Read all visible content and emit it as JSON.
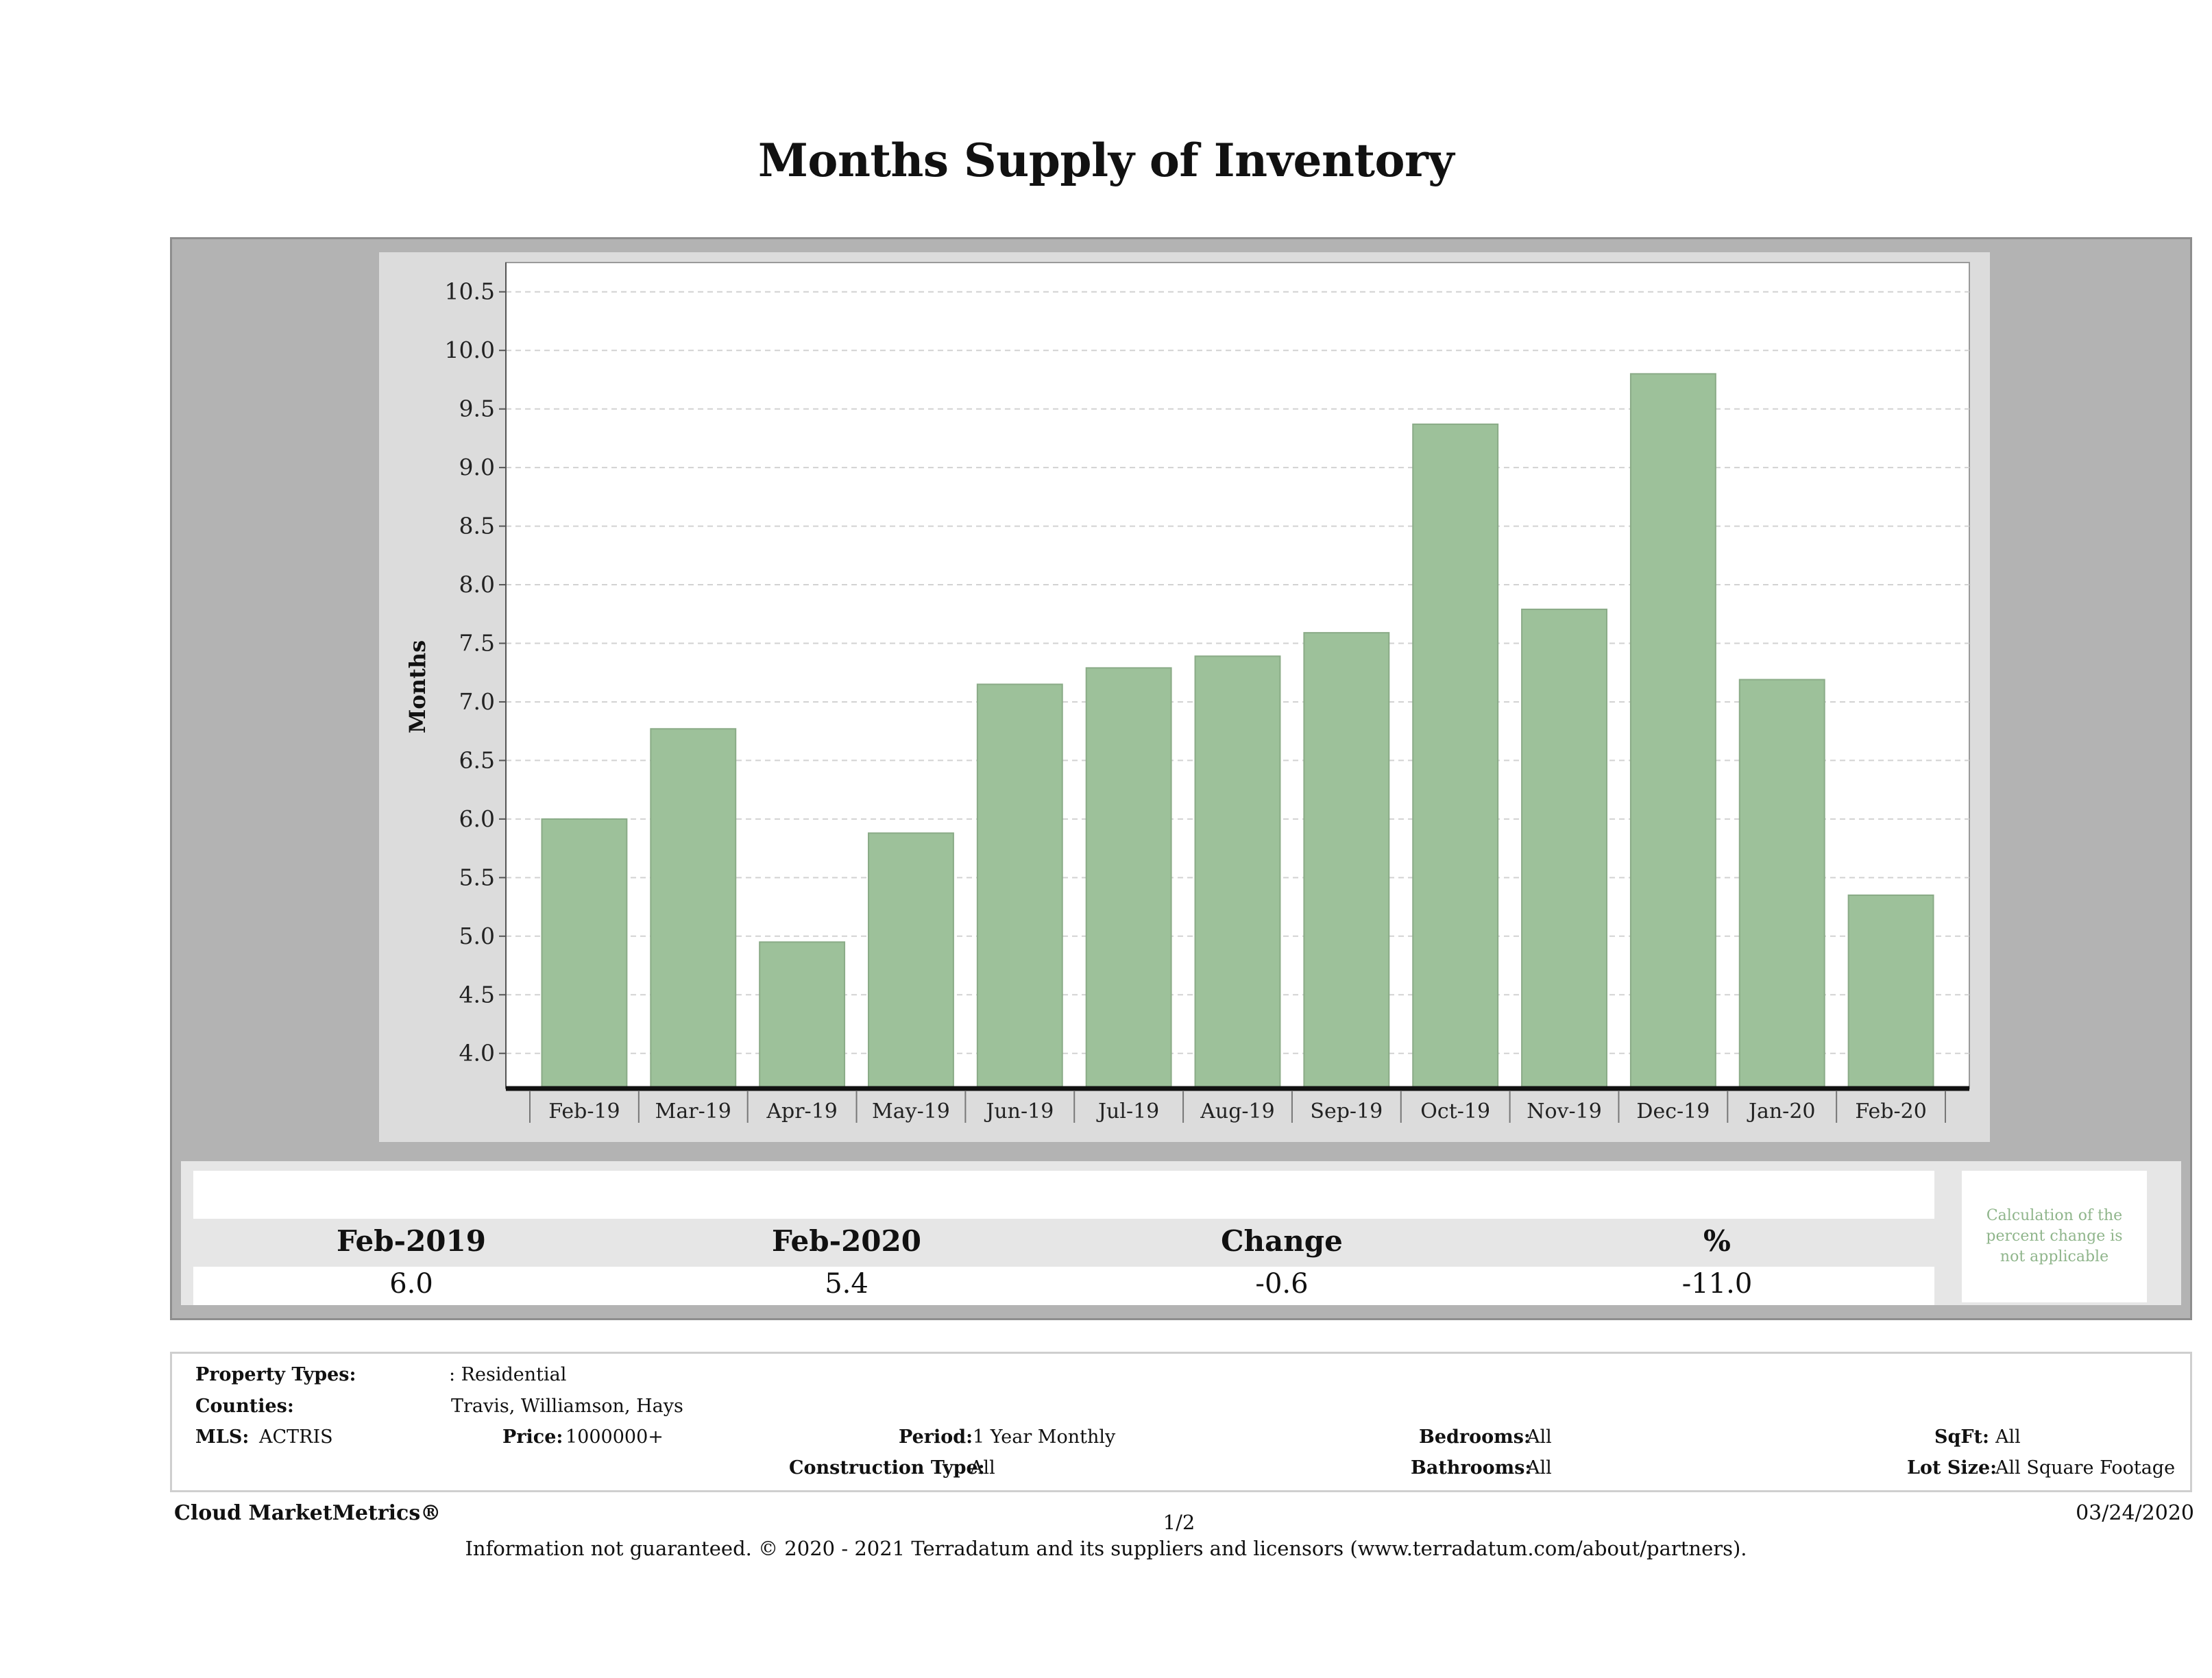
{
  "title": "Months Supply of Inventory",
  "colors": {
    "bar": "#9dc19a",
    "bar_edge": "#8aab87",
    "panel": "#b3b3b3",
    "plot_bg": "#ffffff",
    "note_text": "#8fb58b"
  },
  "chart_data": {
    "type": "bar",
    "title": "Months Supply of Inventory",
    "xlabel": "",
    "ylabel": "Months",
    "categories": [
      "Feb-19",
      "Mar-19",
      "Apr-19",
      "May-19",
      "Jun-19",
      "Jul-19",
      "Aug-19",
      "Sep-19",
      "Oct-19",
      "Nov-19",
      "Dec-19",
      "Jan-20",
      "Feb-20"
    ],
    "values": [
      6.0,
      6.77,
      4.95,
      5.88,
      7.15,
      7.29,
      7.39,
      7.59,
      9.37,
      7.79,
      9.8,
      7.19,
      5.35
    ],
    "ylim": [
      3.7,
      10.75
    ],
    "yticks": [
      "10.5",
      "10.0",
      "9.5",
      "9.0",
      "8.5",
      "8.0",
      "7.5",
      "7.0",
      "6.5",
      "6.0",
      "5.5",
      "5.0",
      "4.5",
      "4.0"
    ],
    "grid": true
  },
  "stats": {
    "headers": [
      "Feb-2019",
      "Feb-2020",
      "Change",
      "%"
    ],
    "values": [
      "6.0",
      "5.4",
      "-0.6",
      "-11.0"
    ],
    "note": "Calculation of the percent change is not applicable"
  },
  "info": {
    "property_types_label": "Property Types:",
    "property_types_value": ": Residential",
    "counties_label": "Counties:",
    "counties_value": "Travis, Williamson, Hays",
    "mls_label": "MLS:",
    "mls_value": "ACTRIS",
    "price_label": "Price:",
    "price_value": "1000000+",
    "period_label": "Period:",
    "period_value": "1 Year Monthly",
    "construction_label": "Construction Type:",
    "construction_value": "All",
    "bedrooms_label": "Bedrooms:",
    "bedrooms_value": "All",
    "bathrooms_label": "Bathrooms:",
    "bathrooms_value": "All",
    "sqft_label": "SqFt:",
    "sqft_value": "All",
    "lotsize_label": "Lot Size:",
    "lotsize_value": "All Square Footage"
  },
  "footer": {
    "brand": "Cloud MarketMetrics®",
    "page": "1/2",
    "date": "03/24/2020",
    "legal": "Information not guaranteed. © 2020 - 2021 Terradatum and its suppliers and licensors (www.terradatum.com/about/partners)."
  }
}
